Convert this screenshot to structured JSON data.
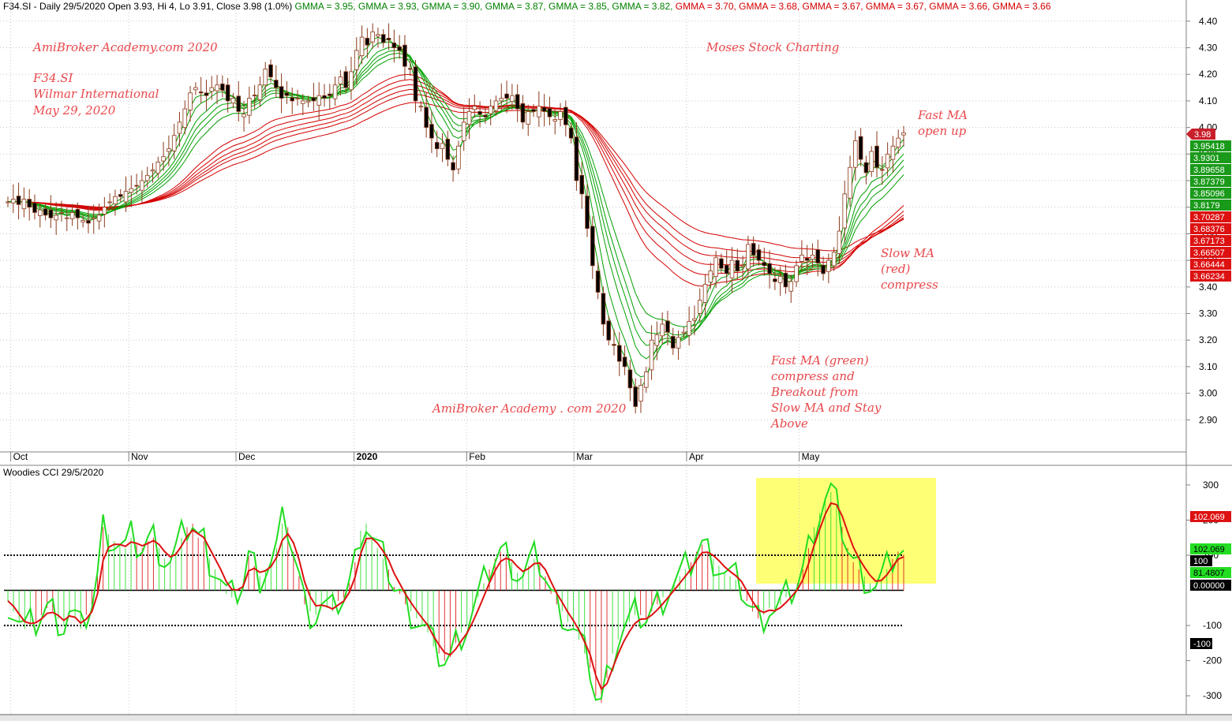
{
  "colors": {
    "up_candle": "#ffffff",
    "down_candle": "#000000",
    "candle_outline": "#8b3a1a",
    "fast_ma": "#00a000",
    "slow_ma": "#d40000",
    "cci_green": "#22dd22",
    "cci_red": "#dd1111",
    "highlight": "#ffff66",
    "annotation": "#e8484b",
    "separator": "#808080"
  },
  "header": {
    "prefix": "F34.SI - Daily 29/5/2020 Open 3.93, Hi 4, Lo 3.91, Close 3.98 (1.0%)",
    "gmma": [
      {
        "label": "GMMA = 3.95,",
        "color": "green"
      },
      {
        "label": "GMMA = 3.93,",
        "color": "green"
      },
      {
        "label": "GMMA = 3.90,",
        "color": "green"
      },
      {
        "label": "GMMA = 3.87,",
        "color": "green"
      },
      {
        "label": "GMMA = 3.85,",
        "color": "green"
      },
      {
        "label": "GMMA = 3.82,",
        "color": "green"
      },
      {
        "label": "GMMA = 3.70,",
        "color": "red"
      },
      {
        "label": "GMMA = 3.68,",
        "color": "red"
      },
      {
        "label": "GMMA = 3.67,",
        "color": "red"
      },
      {
        "label": "GMMA = 3.67,",
        "color": "red"
      },
      {
        "label": "GMMA = 3.66,",
        "color": "red"
      },
      {
        "label": "GMMA = 3.66",
        "color": "red"
      }
    ]
  },
  "annotations": {
    "watermark_top": "AmiBroker Academy.com  2020",
    "symbol": "F34.SI",
    "company": "Wilmar International",
    "date": "May 29, 2020",
    "moses": "Moses Stock Charting",
    "fast_ma_open_1": "Fast MA",
    "fast_ma_open_2": "open up",
    "slow_ma_1": "Slow MA",
    "slow_ma_2": "(red)",
    "slow_ma_3": "compress",
    "fast_green_1": "Fast MA (green)",
    "fast_green_2": "compress and",
    "fast_green_3": "Breakout from",
    "fast_green_4": "Slow MA and Stay",
    "fast_green_5": "Above",
    "watermark_mid": "AmiBroker Academy . com  2020"
  },
  "price_badges": [
    {
      "text": "3.98",
      "kind": "close"
    },
    {
      "text": "3.95418",
      "kind": "green"
    },
    {
      "text": "3.9301",
      "kind": "green"
    },
    {
      "text": "3.89658",
      "kind": "green"
    },
    {
      "text": "3.87379",
      "kind": "green"
    },
    {
      "text": "3.85096",
      "kind": "green"
    },
    {
      "text": "3.8179",
      "kind": "green"
    },
    {
      "text": "3.70287",
      "kind": "red"
    },
    {
      "text": "3.68376",
      "kind": "red"
    },
    {
      "text": "3.67173",
      "kind": "red"
    },
    {
      "text": "3.66507",
      "kind": "red"
    },
    {
      "text": "3.66444",
      "kind": "red"
    },
    {
      "text": "3.66234",
      "kind": "red"
    }
  ],
  "cci_pane": {
    "title": "Woodies CCI  29/5/2020",
    "badges": [
      {
        "text": "102.069",
        "kind": "red"
      },
      {
        "text": "102.069",
        "kind": "green"
      },
      {
        "text": "100",
        "kind": "black"
      },
      {
        "text": "81.4807",
        "kind": "green"
      },
      {
        "text": "0.00000",
        "kind": "black"
      },
      {
        "text": "-100",
        "kind": "black"
      }
    ]
  },
  "chart_data": [
    {
      "type": "candlestick",
      "symbol": "F34.SI",
      "ylim": [
        2.8,
        4.45
      ],
      "yticks": [
        "4.40",
        "4.30",
        "4.20",
        "4.10",
        "4.00",
        "3.90",
        "3.80",
        "3.70",
        "3.60",
        "3.50",
        "3.40",
        "3.30",
        "3.20",
        "3.10",
        "3.00",
        "2.90"
      ],
      "x_labels": [
        {
          "label": "Oct",
          "bar": 2
        },
        {
          "label": "Nov",
          "bar": 24
        },
        {
          "label": "Dec",
          "bar": 44
        },
        {
          "label": "2020",
          "bar": 66
        },
        {
          "label": "Feb",
          "bar": 87
        },
        {
          "label": "Mar",
          "bar": 107
        },
        {
          "label": "Apr",
          "bar": 128
        },
        {
          "label": "May",
          "bar": 149
        }
      ],
      "bar_count": 168,
      "close": [
        3.72,
        3.73,
        3.71,
        3.73,
        3.7,
        3.68,
        3.69,
        3.67,
        3.66,
        3.67,
        3.68,
        3.66,
        3.68,
        3.66,
        3.65,
        3.64,
        3.66,
        3.67,
        3.7,
        3.72,
        3.74,
        3.74,
        3.76,
        3.77,
        3.78,
        3.8,
        3.82,
        3.84,
        3.87,
        3.89,
        3.92,
        3.97,
        4.02,
        4.07,
        4.13,
        4.15,
        4.13,
        4.12,
        4.15,
        4.16,
        4.14,
        4.1,
        4.11,
        4.06,
        4.05,
        4.11,
        4.12,
        4.16,
        4.22,
        4.19,
        4.15,
        4.11,
        4.12,
        4.1,
        4.11,
        4.1,
        4.1,
        4.1,
        4.12,
        4.11,
        4.12,
        4.16,
        4.19,
        4.15,
        4.21,
        4.29,
        4.34,
        4.31,
        4.36,
        4.35,
        4.32,
        4.33,
        4.3,
        4.29,
        4.23,
        4.22,
        4.1,
        4.08,
        4.0,
        3.96,
        3.92,
        3.94,
        3.88,
        3.84,
        3.93,
        4.02,
        4.06,
        4.08,
        4.05,
        4.04,
        4.08,
        4.1,
        4.11,
        4.11,
        4.12,
        4.07,
        4.02,
        4.06,
        4.06,
        4.08,
        4.06,
        4.04,
        4.03,
        4.06,
        4.01,
        3.96,
        3.8,
        3.75,
        3.62,
        3.48,
        3.38,
        3.26,
        3.2,
        3.18,
        3.12,
        3.1,
        3.02,
        2.95,
        3.03,
        3.08,
        3.2,
        3.22,
        3.26,
        3.23,
        3.17,
        3.21,
        3.23,
        3.27,
        3.28,
        3.35,
        3.41,
        3.46,
        3.51,
        3.47,
        3.45,
        3.5,
        3.46,
        3.48,
        3.56,
        3.52,
        3.5,
        3.48,
        3.45,
        3.42,
        3.44,
        3.4,
        3.42,
        3.48,
        3.52,
        3.5,
        3.52,
        3.49,
        3.45,
        3.5,
        3.53,
        3.61,
        3.75,
        3.85,
        3.95,
        3.88,
        3.83,
        3.91,
        3.85,
        3.84,
        3.9,
        3.93,
        3.96,
        3.98
      ]
    },
    {
      "type": "line",
      "name": "Woodies CCI",
      "ylim": [
        -340,
        320
      ],
      "yticks": [
        "300",
        "200",
        "100",
        "-100",
        "-200",
        "-300"
      ],
      "reference_lines": [
        100,
        0,
        -100
      ],
      "cci": [
        -30,
        -60,
        -90,
        -110,
        -100,
        -90,
        -70,
        -50,
        -60,
        -80,
        -100,
        -60,
        -80,
        -110,
        -70,
        -40,
        40,
        180,
        160,
        140,
        130,
        120,
        150,
        130,
        120,
        140,
        150,
        120,
        90,
        80,
        110,
        150,
        180,
        190,
        150,
        140,
        90,
        60,
        30,
        -10,
        -20,
        0,
        20,
        100,
        70,
        40,
        60,
        80,
        120,
        190,
        180,
        110,
        40,
        -40,
        -60,
        -70,
        -40,
        -50,
        -60,
        -30,
        -20,
        20,
        80,
        170,
        190,
        150,
        120,
        90,
        60,
        10,
        -10,
        -40,
        -60,
        -80,
        -100,
        -120,
        -160,
        -180,
        -200,
        -190,
        -150,
        -120,
        -100,
        -60,
        -20,
        20,
        60,
        90,
        110,
        100,
        80,
        50,
        40,
        70,
        90,
        80,
        40,
        -10,
        -40,
        -60,
        -90,
        -110,
        -140,
        -180,
        -220,
        -300,
        -320,
        -250,
        -180,
        -140,
        -110,
        -90,
        -70,
        -70,
        -80,
        -60,
        -40,
        -20,
        0,
        20,
        40,
        60,
        80,
        110,
        130,
        110,
        90,
        70,
        50,
        40,
        30,
        10,
        -30,
        -60,
        -80,
        -70,
        -50,
        -60,
        -40,
        -20,
        0,
        20,
        60,
        120,
        180,
        220,
        260,
        280,
        240,
        180,
        120,
        80,
        60,
        40,
        20,
        10,
        30,
        60,
        90,
        110,
        102
      ]
    }
  ]
}
